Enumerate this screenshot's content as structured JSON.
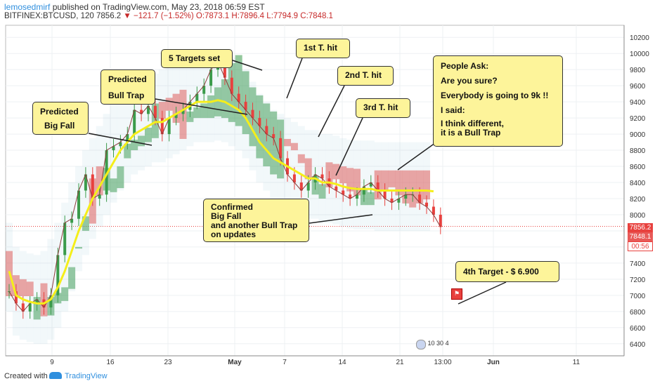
{
  "header": {
    "author": "lemosedmirf",
    "published": " published on TradingView.com, May 23, 2018 06:59 EST",
    "symbol": "BITFINEX:BTCUSD, 120",
    "last": "7856.2",
    "change": "−121.7 (−1.52%)",
    "open": "O:7873.1",
    "high": "H:7896.4",
    "low": "L:7794.9",
    "close": "C:7848.1"
  },
  "footer": {
    "created": "Created with",
    "brand": "TradingView"
  },
  "colors": {
    "accent_blue": "#2f8fde",
    "down_red": "#e8413e",
    "up_green": "#3b9b4b",
    "ma_yellow": "#f5ee1a",
    "note_bg": "#fdf49a"
  },
  "chart_data": {
    "type": "line",
    "ylim": [
      6250,
      10350
    ],
    "yticks": [
      6400,
      6600,
      6800,
      7000,
      7200,
      7400,
      7600,
      7800,
      8000,
      8200,
      8400,
      8600,
      8800,
      9000,
      9200,
      9400,
      9600,
      9800,
      10000,
      10200
    ],
    "xticks": [
      "9",
      "16",
      "23",
      "May",
      "7",
      "14",
      "21",
      "13:00",
      "Jun",
      "11"
    ],
    "price_labels": [
      "7856.2",
      "7848.1",
      "00:56"
    ],
    "event_counts": [
      "10",
      "30",
      "4"
    ],
    "series": [
      {
        "x": [
          0,
          1,
          2,
          3,
          4,
          5,
          6,
          7,
          8,
          9,
          10,
          11,
          12,
          13,
          14,
          15,
          16,
          17,
          18,
          19,
          20,
          21,
          22,
          23,
          24,
          25,
          26,
          27,
          28,
          29,
          30,
          31,
          32,
          33,
          34,
          35,
          36,
          37,
          38,
          39,
          40,
          41,
          42,
          43,
          44,
          45,
          46,
          47,
          48,
          49,
          50,
          51,
          52,
          53,
          54,
          55,
          56,
          57,
          58,
          59,
          60,
          61,
          62
        ],
        "values": [
          7050,
          6900,
          6800,
          6900,
          6950,
          6850,
          7000,
          7500,
          7900,
          7950,
          8300,
          8500,
          8200,
          8250,
          8800,
          8850,
          8900,
          9000,
          9300,
          9250,
          9350,
          9200,
          9000,
          9200,
          9250,
          9300,
          9400,
          9500,
          9600,
          9800,
          9900,
          9700,
          9500,
          9400,
          9300,
          9200,
          9100,
          9000,
          8950,
          8700,
          8500,
          8400,
          8300,
          8400,
          8500,
          8450,
          8350,
          8300,
          8250,
          8200,
          8250,
          8350,
          8400,
          8300,
          8200,
          8150,
          8200,
          8250,
          8250,
          8150,
          8100,
          8000,
          7848
        ]
      },
      {
        "x": [
          0,
          1,
          2,
          3,
          4,
          5,
          6,
          7,
          8,
          9,
          10,
          11,
          12,
          13,
          14,
          15,
          16,
          17,
          18,
          19,
          20,
          21,
          22,
          23,
          24,
          25,
          26,
          27,
          28,
          29,
          30,
          31,
          32,
          33,
          34,
          35,
          36,
          37,
          38,
          39,
          40,
          41,
          42,
          43,
          44,
          45,
          46,
          47,
          48,
          49,
          50,
          51,
          52,
          53,
          54,
          55,
          56,
          57,
          58,
          59,
          60,
          61
        ],
        "values": [
          7300,
          7000,
          6950,
          6920,
          6900,
          6900,
          6950,
          7100,
          7300,
          7550,
          7800,
          8000,
          8200,
          8350,
          8500,
          8650,
          8800,
          8900,
          9000,
          9050,
          9100,
          9150,
          9150,
          9200,
          9250,
          9300,
          9350,
          9400,
          9400,
          9400,
          9420,
          9400,
          9350,
          9300,
          9200,
          9050,
          8900,
          8800,
          8700,
          8650,
          8600,
          8550,
          8500,
          8450,
          8450,
          8400,
          8400,
          8380,
          8350,
          8330,
          8320,
          8320,
          8320,
          8300,
          8300,
          8300,
          8300,
          8300,
          8300,
          8300,
          8300,
          8290
        ]
      }
    ],
    "annotations": [
      "Predicted Big Fall",
      "Predicted Bull Trap",
      "5 Targets set",
      "1st T. hit",
      "2nd T. hit",
      "3rd T. hit",
      "People Ask: Are you sure? Everybody is going to 9k !! I said: I think different, it is a Bull Trap",
      "Confirmed Big Fall and another Bull Trap on updates",
      "4th Target - $ 6.900"
    ]
  },
  "notes": {
    "n1a": "Predicted",
    "n1b": "Big Fall",
    "n2a": "Predicted",
    "n2b": "Bull Trap",
    "n3": "5 Targets set",
    "n4": "1st T. hit",
    "n5": "2nd T. hit",
    "n6": "3rd T. hit",
    "n7a": "People Ask:",
    "n7b": "Are you sure?",
    "n7c": "Everybody is going to 9k !!",
    "n7d": "I said:",
    "n7e": "I think different,",
    "n7f": "it is a Bull Trap",
    "n8a": "Confirmed",
    "n8b": "Big Fall",
    "n8c": "and another Bull Trap",
    "n8d": "on updates",
    "n9": "4th Target - $ 6.900"
  }
}
